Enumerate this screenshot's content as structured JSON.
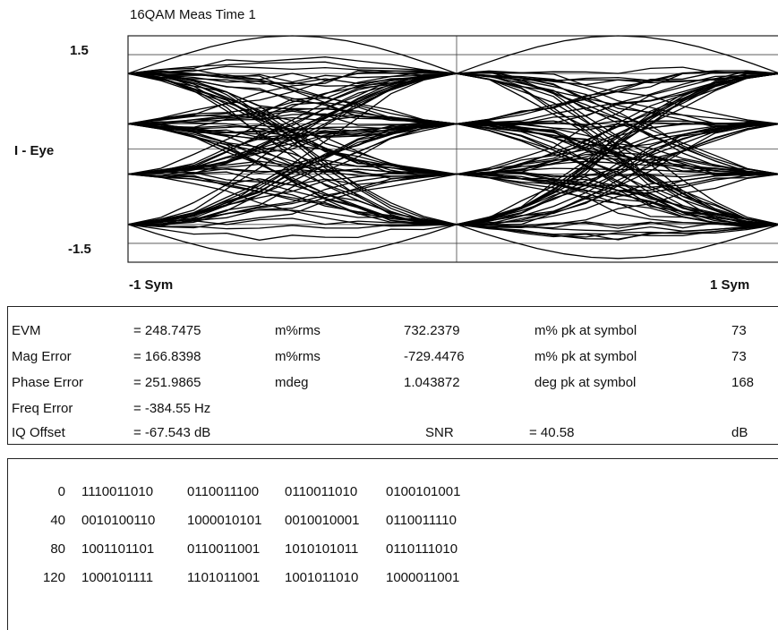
{
  "chart_data": {
    "type": "line",
    "title": "16QAM Meas Time 1",
    "ylabel": "I - Eye",
    "ylim": [
      -1.5,
      1.5
    ],
    "y_tick_labels": [
      "1.5",
      "-1.5"
    ],
    "x_tick_labels": [
      "-1 Sym",
      "1 Sym"
    ],
    "xlim": [
      -1,
      1
    ],
    "grid": true,
    "eye_levels": [
      1.0,
      0.333,
      -0.333,
      -1.0
    ],
    "trace_color": "#000000"
  },
  "measurements": [
    {
      "name": "EVM",
      "value": "= 248.7475",
      "unit": "m%rms",
      "peak": "732.2379",
      "peak_unit": "m% pk at symbol",
      "symbol": "73"
    },
    {
      "name": "Mag Error",
      "value": "= 166.8398",
      "unit": "m%rms",
      "peak": "-729.4476",
      "peak_unit": "m% pk at symbol",
      "symbol": "73"
    },
    {
      "name": "Phase Error",
      "value": "= 251.9865",
      "unit": "mdeg",
      "peak": "1.043872",
      "peak_unit": "deg pk at symbol",
      "symbol": "168"
    },
    {
      "name": "Freq Error",
      "value": "= -384.55 Hz",
      "unit": "",
      "peak": "",
      "peak_unit": "",
      "symbol": ""
    },
    {
      "name": "IQ Offset",
      "value": "= -67.543 dB",
      "unit": "",
      "peak": "SNR",
      "peak_unit": "=  40.58",
      "symbol": "dB"
    }
  ],
  "bits": [
    {
      "index": "0",
      "groups": [
        "1110011010",
        "0110011100",
        "0110011010",
        "0100101001"
      ]
    },
    {
      "index": "40",
      "groups": [
        "0010100110",
        "1000010101",
        "0010010001",
        "0110011110"
      ]
    },
    {
      "index": "80",
      "groups": [
        "1001101101",
        "0110011001",
        "1010101011",
        "0110111010"
      ]
    },
    {
      "index": "120",
      "groups": [
        "1000101111",
        "1101011001",
        "1001011010",
        "1000011001"
      ]
    }
  ]
}
